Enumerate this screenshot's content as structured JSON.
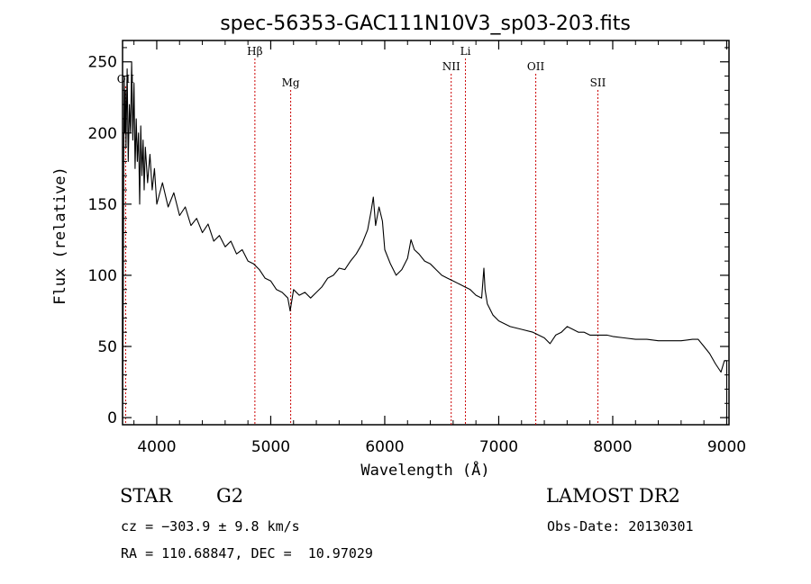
{
  "chart_data": {
    "type": "line",
    "title": "spec-56353-GAC111N10V3_sp03-203.fits",
    "xlabel": "Wavelength (Å)",
    "ylabel": "Flux (relative)",
    "xlim": [
      3700,
      9020
    ],
    "ylim": [
      -5,
      265
    ],
    "x_ticks": [
      4000,
      5000,
      6000,
      7000,
      8000,
      9000
    ],
    "y_ticks": [
      0,
      50,
      100,
      150,
      200,
      250
    ],
    "grid": false,
    "series": [
      {
        "points": [
          [
            3700,
            0
          ],
          [
            3705,
            60
          ],
          [
            3710,
            180
          ],
          [
            3715,
            240
          ],
          [
            3720,
            200
          ],
          [
            3725,
            230
          ],
          [
            3730,
            190
          ],
          [
            3740,
            245
          ],
          [
            3750,
            180
          ],
          [
            3760,
            220
          ],
          [
            3770,
            200
          ],
          [
            3780,
            250
          ],
          [
            3790,
            195
          ],
          [
            3800,
            235
          ],
          [
            3810,
            175
          ],
          [
            3820,
            210
          ],
          [
            3830,
            180
          ],
          [
            3840,
            200
          ],
          [
            3850,
            150
          ],
          [
            3860,
            205
          ],
          [
            3870,
            170
          ],
          [
            3880,
            195
          ],
          [
            3890,
            160
          ],
          [
            3900,
            190
          ],
          [
            3920,
            165
          ],
          [
            3940,
            185
          ],
          [
            3960,
            160
          ],
          [
            3980,
            175
          ],
          [
            4000,
            150
          ],
          [
            4050,
            165
          ],
          [
            4100,
            148
          ],
          [
            4150,
            158
          ],
          [
            4200,
            142
          ],
          [
            4250,
            148
          ],
          [
            4300,
            135
          ],
          [
            4350,
            140
          ],
          [
            4400,
            130
          ],
          [
            4450,
            136
          ],
          [
            4500,
            124
          ],
          [
            4550,
            128
          ],
          [
            4600,
            120
          ],
          [
            4650,
            124
          ],
          [
            4700,
            115
          ],
          [
            4750,
            118
          ],
          [
            4800,
            110
          ],
          [
            4850,
            108
          ],
          [
            4900,
            104
          ],
          [
            4950,
            98
          ],
          [
            5000,
            96
          ],
          [
            5050,
            90
          ],
          [
            5100,
            88
          ],
          [
            5150,
            84
          ],
          [
            5170,
            75
          ],
          [
            5200,
            90
          ],
          [
            5250,
            86
          ],
          [
            5300,
            88
          ],
          [
            5350,
            84
          ],
          [
            5400,
            88
          ],
          [
            5450,
            92
          ],
          [
            5500,
            98
          ],
          [
            5550,
            100
          ],
          [
            5600,
            105
          ],
          [
            5650,
            104
          ],
          [
            5700,
            110
          ],
          [
            5750,
            115
          ],
          [
            5800,
            122
          ],
          [
            5850,
            132
          ],
          [
            5880,
            145
          ],
          [
            5900,
            155
          ],
          [
            5920,
            135
          ],
          [
            5950,
            148
          ],
          [
            5980,
            138
          ],
          [
            6000,
            118
          ],
          [
            6050,
            108
          ],
          [
            6100,
            100
          ],
          [
            6150,
            104
          ],
          [
            6200,
            112
          ],
          [
            6230,
            125
          ],
          [
            6260,
            118
          ],
          [
            6300,
            115
          ],
          [
            6350,
            110
          ],
          [
            6400,
            108
          ],
          [
            6450,
            104
          ],
          [
            6500,
            100
          ],
          [
            6550,
            98
          ],
          [
            6600,
            96
          ],
          [
            6650,
            94
          ],
          [
            6700,
            92
          ],
          [
            6750,
            90
          ],
          [
            6800,
            86
          ],
          [
            6850,
            84
          ],
          [
            6870,
            105
          ],
          [
            6880,
            90
          ],
          [
            6900,
            80
          ],
          [
            6950,
            72
          ],
          [
            7000,
            68
          ],
          [
            7050,
            66
          ],
          [
            7100,
            64
          ],
          [
            7200,
            62
          ],
          [
            7300,
            60
          ],
          [
            7400,
            56
          ],
          [
            7450,
            52
          ],
          [
            7500,
            58
          ],
          [
            7550,
            60
          ],
          [
            7600,
            64
          ],
          [
            7650,
            62
          ],
          [
            7700,
            60
          ],
          [
            7750,
            60
          ],
          [
            7800,
            58
          ],
          [
            7850,
            58
          ],
          [
            7900,
            58
          ],
          [
            7950,
            58
          ],
          [
            8000,
            57
          ],
          [
            8100,
            56
          ],
          [
            8200,
            55
          ],
          [
            8300,
            55
          ],
          [
            8400,
            54
          ],
          [
            8500,
            54
          ],
          [
            8600,
            54
          ],
          [
            8700,
            55
          ],
          [
            8750,
            55
          ],
          [
            8800,
            50
          ],
          [
            8850,
            45
          ],
          [
            8900,
            38
          ],
          [
            8950,
            32
          ],
          [
            8980,
            40
          ],
          [
            9000,
            40
          ],
          [
            9000,
            0
          ]
        ]
      }
    ],
    "lines": [
      {
        "label": "OII",
        "x": 3727
      },
      {
        "label": "Hβ",
        "x": 4861
      },
      {
        "label": "Mg",
        "x": 5175
      },
      {
        "label": "NII",
        "x": 6583
      },
      {
        "label": "Li",
        "x": 6708
      },
      {
        "label": "OII",
        "x": 7325
      },
      {
        "label": "SII",
        "x": 7870
      }
    ],
    "line_color": "#cc0000"
  },
  "info": {
    "object_class": "STAR",
    "subclass": "G2",
    "survey": "LAMOST DR2",
    "cz": "cz = −303.9 ± 9.8 km/s",
    "obs_date": "Obs-Date: 20130301",
    "radec": "RA = 110.68847, DEC =  10.97029"
  }
}
